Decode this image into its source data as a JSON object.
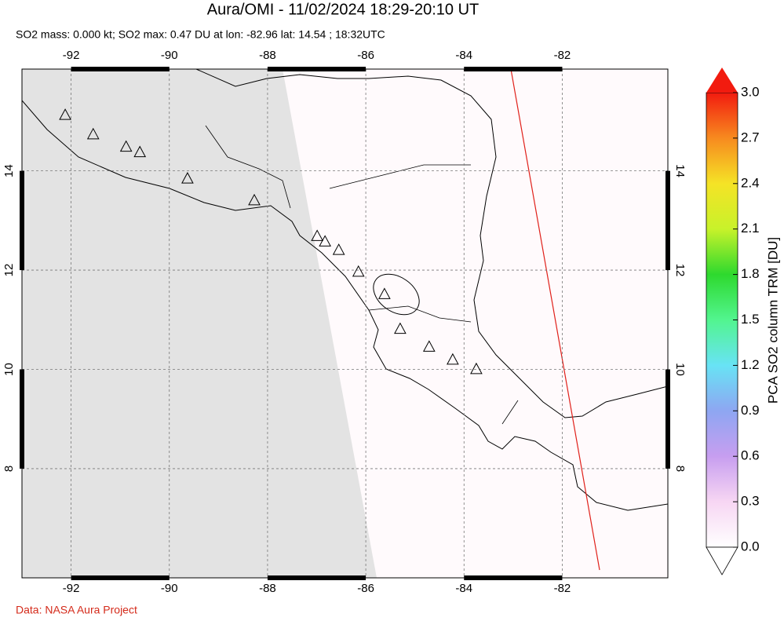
{
  "title": "Aura/OMI - 11/02/2024 18:29-20:10 UT",
  "subtitle": "SO2 mass: 0.000 kt; SO2 max: 0.47 DU at lon: -82.96 lat: 14.54 ; 18:32UTC",
  "footer": "Data: NASA Aura Project",
  "map": {
    "lon_range": [
      -93,
      -79.85
    ],
    "lat_range": [
      5.8,
      16.05
    ],
    "lon_ticks": [
      -92,
      -90,
      -88,
      -86,
      -84,
      -82
    ],
    "lat_ticks": [
      14,
      12,
      10,
      8
    ],
    "volcanoes": {
      "lon": [
        -92.12,
        -91.55,
        -90.88,
        -90.6,
        -89.63,
        -88.27,
        -86.99,
        -86.83,
        -86.55,
        -86.15,
        -85.62,
        -85.3,
        -84.71,
        -84.23,
        -83.75
      ],
      "lat": [
        15.13,
        14.74,
        14.49,
        14.38,
        13.85,
        13.41,
        12.69,
        12.58,
        12.41,
        11.97,
        11.52,
        10.82,
        10.46,
        10.2,
        10.01
      ]
    }
  },
  "colorbar": {
    "label": "PCA SO2 column TRM [DU]",
    "range": [
      0,
      3
    ],
    "ticks": [
      {
        "value": 0,
        "label": "0.0"
      },
      0.3,
      0.6,
      0.9,
      1.2,
      1.5,
      1.8,
      2.1,
      2.4,
      2.7,
      {
        "value": 3,
        "label": "3.0"
      }
    ],
    "colors": [
      "#ffffff",
      "#f7d6f3",
      "#c79ef0",
      "#8ea6f2",
      "#68e3f5",
      "#52f58f",
      "#2ed92e",
      "#c8f22a",
      "#f5e326",
      "#f78a1f",
      "#f21b0f"
    ]
  }
}
